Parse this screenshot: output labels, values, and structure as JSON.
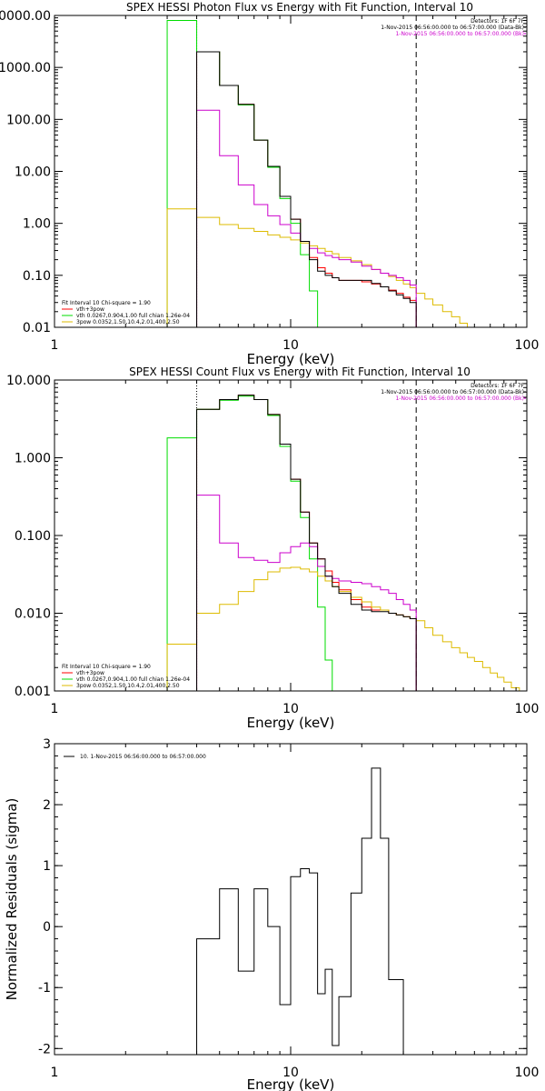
{
  "chart_data": [
    {
      "type": "line",
      "title": "SPEX HESSI Photon Flux vs Energy with Fit Function, Interval 10",
      "xlabel": "Energy (keV)",
      "ylabel": "",
      "xscale": "log",
      "yscale": "log",
      "xlim": [
        1,
        100
      ],
      "ylim": [
        0.01,
        10000
      ],
      "x_ticks": [
        {
          "value": 1,
          "label": "1"
        },
        {
          "value": 10,
          "label": "10"
        },
        {
          "value": 100,
          "label": "100"
        }
      ],
      "y_ticks": [
        {
          "value": 0.01,
          "label": "0.01"
        },
        {
          "value": 0.1,
          "label": "0.10"
        },
        {
          "value": 1,
          "label": "1.00"
        },
        {
          "value": 10,
          "label": "10.00"
        },
        {
          "value": 100,
          "label": "100.00"
        },
        {
          "value": 1000,
          "label": "1000.00"
        },
        {
          "value": 10000,
          "label": "10000.00"
        }
      ],
      "info": [
        "Detectors: 1F 6F 7F",
        "1-Nov-2015 06:56:00.000 to 06:57:00.000 (Data-Bk)",
        "1-Nov-2015 06:56:00.000 to 06:57:00.000 (Bk)"
      ],
      "info_colors": [
        "#000000",
        "#000000",
        "#cc00cc"
      ],
      "legend_header": "Fit Interval 10   Chi-square = 1.90",
      "legend_position": "bottom-left",
      "vlines": [
        {
          "x": 4.0,
          "style": "dotted",
          "color": "#000000"
        },
        {
          "x": 34.0,
          "style": "dashed",
          "color": "#000000"
        }
      ],
      "edges": [
        3.0,
        4.0,
        5.0,
        6.0,
        7.0,
        8.0,
        9.0,
        10.0,
        11.0,
        12.0,
        13.0,
        14.0,
        15.0,
        16.0,
        18.0,
        20.0,
        22.0,
        24.0,
        26.0,
        28.0,
        30.0,
        32.0,
        34.0,
        37.0,
        40.0,
        44.0,
        48.0,
        52.0,
        56.0,
        60.0,
        65.0
      ],
      "series": [
        {
          "name": "vth+3pow",
          "color": "#ff0000",
          "values": [
            null,
            2000,
            450,
            195,
            40,
            12.5,
            3.3,
            1.2,
            0.45,
            0.22,
            0.14,
            0.11,
            0.09,
            0.08,
            0.08,
            0.075,
            0.068,
            0.06,
            0.052,
            0.045,
            0.038,
            0.033,
            null,
            null,
            null,
            null,
            null,
            null,
            null,
            null
          ]
        },
        {
          "name": "vth 0.0267,0.904,1.00  full chian 1.26e-04",
          "color": "#00dd00",
          "values": [
            8000,
            2000,
            450,
            190,
            40,
            12,
            3.0,
            1.0,
            0.25,
            0.05,
            0.009,
            null,
            null,
            null,
            null,
            null,
            null,
            null,
            null,
            null,
            null,
            null,
            null,
            null,
            null,
            null,
            null,
            null,
            null,
            null
          ]
        },
        {
          "name": "3pow 0.0352,1.50,10.4,2.01,400,2.50",
          "color": "#ddbb00",
          "values": [
            1.9,
            1.3,
            0.95,
            0.8,
            0.7,
            0.6,
            0.54,
            0.48,
            0.42,
            0.37,
            0.33,
            0.29,
            0.26,
            0.22,
            0.19,
            0.16,
            0.13,
            0.11,
            0.095,
            0.08,
            0.068,
            0.058,
            0.045,
            0.035,
            0.027,
            0.02,
            0.016,
            0.012,
            0.0095,
            0.0075
          ]
        },
        {
          "name": "",
          "color": "#cc00cc",
          "values": [
            null,
            150,
            20,
            5.5,
            2.3,
            1.4,
            0.95,
            0.65,
            0.45,
            0.33,
            0.27,
            0.24,
            0.22,
            0.2,
            0.18,
            0.15,
            0.13,
            0.11,
            0.1,
            0.09,
            0.08,
            0.065,
            null,
            null,
            null,
            null,
            null,
            null,
            null,
            null
          ]
        },
        {
          "name": "",
          "color": "#000000",
          "values": [
            null,
            2000,
            450,
            195,
            40,
            12.5,
            3.3,
            1.2,
            0.45,
            0.2,
            0.12,
            0.1,
            0.09,
            0.08,
            0.08,
            0.08,
            0.07,
            0.06,
            0.05,
            0.042,
            0.036,
            0.03,
            null,
            null,
            null,
            null,
            null,
            null,
            null,
            null
          ]
        }
      ],
      "legend_items": [
        0,
        1,
        2
      ]
    },
    {
      "type": "line",
      "title": "SPEX HESSI Count Flux vs Energy with Fit Function, Interval 10",
      "xlabel": "Energy (keV)",
      "ylabel": "",
      "xscale": "log",
      "yscale": "log",
      "xlim": [
        1,
        100
      ],
      "ylim": [
        0.001,
        10
      ],
      "x_ticks": [
        {
          "value": 1,
          "label": "1"
        },
        {
          "value": 10,
          "label": "10"
        },
        {
          "value": 100,
          "label": "100"
        }
      ],
      "y_ticks": [
        {
          "value": 0.001,
          "label": "0.001"
        },
        {
          "value": 0.01,
          "label": "0.010"
        },
        {
          "value": 0.1,
          "label": "0.100"
        },
        {
          "value": 1,
          "label": "1.000"
        },
        {
          "value": 10,
          "label": "10.000"
        }
      ],
      "info": [
        "Detectors: 1F 6F 7F",
        "1-Nov-2015 06:56:00.000 to 06:57:00.000 (Data-Bk)",
        "1-Nov-2015 06:56:00.000 to 06:57:00.000 (Bk)"
      ],
      "info_colors": [
        "#000000",
        "#000000",
        "#cc00cc"
      ],
      "legend_header": "Fit Interval 10   Chi-square = 1.90",
      "legend_position": "bottom-left",
      "vlines": [
        {
          "x": 4.0,
          "style": "dotted",
          "color": "#000000"
        },
        {
          "x": 34.0,
          "style": "dashed",
          "color": "#000000"
        }
      ],
      "edges": [
        3.0,
        4.0,
        5.0,
        6.0,
        7.0,
        8.0,
        9.0,
        10.0,
        11.0,
        12.0,
        13.0,
        14.0,
        15.0,
        16.0,
        18.0,
        20.0,
        22.0,
        24.0,
        26.0,
        28.0,
        30.0,
        32.0,
        34.0,
        37.0,
        40.0,
        44.0,
        48.0,
        52.0,
        56.0,
        60.0,
        65.0,
        70.0,
        75.0,
        80.0,
        86.0,
        93.0,
        100.0
      ],
      "series": [
        {
          "name": "vth+3pow",
          "color": "#ff0000",
          "values": [
            null,
            4.2,
            5.6,
            6.4,
            5.6,
            3.6,
            1.5,
            0.53,
            0.2,
            0.08,
            0.05,
            0.035,
            0.025,
            0.02,
            0.015,
            0.012,
            0.011,
            0.011,
            0.01,
            0.0095,
            0.009,
            0.0085,
            null,
            null,
            null,
            null,
            null,
            null,
            null,
            null,
            null,
            null,
            null,
            null,
            null,
            null
          ]
        },
        {
          "name": "vth 0.0267,0.904,1.00  full chian 1.26e-04",
          "color": "#00dd00",
          "values": [
            1.8,
            4.2,
            5.5,
            6.2,
            5.6,
            3.5,
            1.4,
            0.5,
            0.17,
            0.05,
            0.012,
            0.0025,
            0.0006,
            null,
            null,
            null,
            null,
            null,
            null,
            null,
            null,
            null,
            null,
            null,
            null,
            null,
            null,
            null,
            null,
            null,
            null,
            null,
            null,
            null,
            null,
            null
          ]
        },
        {
          "name": "3pow 0.0352,1.50,10.4,2.01,400,2.50",
          "color": "#ddbb00",
          "values": [
            0.004,
            0.01,
            0.013,
            0.019,
            0.027,
            0.034,
            0.038,
            0.039,
            0.037,
            0.034,
            0.03,
            0.026,
            0.022,
            0.019,
            0.016,
            0.014,
            0.012,
            0.011,
            0.01,
            0.0095,
            0.009,
            0.0085,
            0.008,
            0.0065,
            0.0052,
            0.0043,
            0.0036,
            0.0031,
            0.0027,
            0.0024,
            0.002,
            0.0017,
            0.0015,
            0.0013,
            0.0011,
            0.001
          ]
        },
        {
          "name": "",
          "color": "#cc00cc",
          "values": [
            null,
            0.33,
            0.08,
            0.052,
            0.048,
            0.045,
            0.06,
            0.072,
            0.08,
            0.072,
            0.04,
            0.03,
            0.028,
            0.026,
            0.025,
            0.024,
            0.022,
            0.02,
            0.018,
            0.015,
            0.013,
            0.011,
            null,
            null,
            null,
            null,
            null,
            null,
            null,
            null,
            null,
            null,
            null,
            null,
            null,
            null
          ]
        },
        {
          "name": "",
          "color": "#000000",
          "values": [
            null,
            4.2,
            5.6,
            6.4,
            5.6,
            3.6,
            1.5,
            0.53,
            0.2,
            0.08,
            0.05,
            0.03,
            0.022,
            0.018,
            0.013,
            0.011,
            0.0105,
            0.0105,
            0.01,
            0.0095,
            0.009,
            0.0085,
            null,
            null,
            null,
            null,
            null,
            null,
            null,
            null,
            null,
            null,
            null,
            null,
            null,
            null
          ]
        }
      ],
      "legend_items": [
        0,
        1,
        2
      ]
    },
    {
      "type": "line",
      "title": "",
      "xlabel": "Energy (keV)",
      "ylabel": "Normalized Residuals (sigma)",
      "xscale": "log",
      "yscale": "linear",
      "xlim": [
        1,
        100
      ],
      "ylim": [
        -2.1,
        3
      ],
      "x_ticks": [
        {
          "value": 1,
          "label": "1"
        },
        {
          "value": 10,
          "label": "10"
        },
        {
          "value": 100,
          "label": "100"
        }
      ],
      "y_ticks": [
        {
          "value": -2,
          "label": "-2"
        },
        {
          "value": -1,
          "label": "-1"
        },
        {
          "value": 0,
          "label": "0"
        },
        {
          "value": 1,
          "label": "1"
        },
        {
          "value": 2,
          "label": "2"
        },
        {
          "value": 3,
          "label": "3"
        }
      ],
      "info": [],
      "info_colors": [],
      "legend_header": "",
      "legend_position": "top-left",
      "vlines": [],
      "edges": [
        4.0,
        5.0,
        6.0,
        7.0,
        8.0,
        9.0,
        10.0,
        11.0,
        12.0,
        13.0,
        14.0,
        15.0,
        16.0,
        18.0,
        20.0,
        22.0,
        24.0,
        26.0,
        28.0,
        30.0,
        32.0,
        34.0
      ],
      "series": [
        {
          "name": "10.  1-Nov-2015 06:56:00.000 to 06:57:00.000",
          "color": "#000000",
          "values": [
            -0.2,
            0.62,
            -0.73,
            0.62,
            0.0,
            -1.28,
            0.82,
            0.95,
            0.88,
            -1.1,
            -0.7,
            -1.95,
            -1.15,
            0.55,
            1.45,
            2.6,
            1.45,
            -0.87,
            -0.87,
            null,
            null
          ]
        }
      ],
      "legend_items": [
        0
      ]
    }
  ]
}
